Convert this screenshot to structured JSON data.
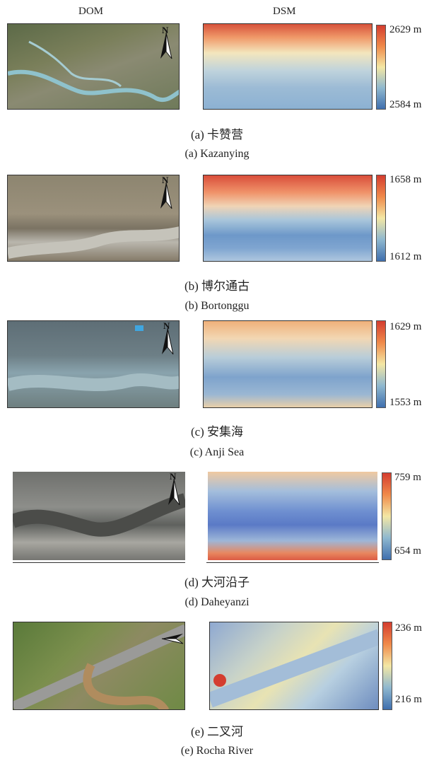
{
  "headers": {
    "dom": "DOM",
    "dsm": "DSM"
  },
  "panels": [
    {
      "cn_caption": "(a) 卡赞营",
      "en_caption": "(a) Kazanying",
      "max": "2629 m",
      "min": "2584 m",
      "north": "N"
    },
    {
      "cn_caption": "(b) 博尔通古",
      "en_caption": "(b) Bortonggu",
      "max": "1658 m",
      "min": "1612 m",
      "north": "N"
    },
    {
      "cn_caption": "(c) 安集海",
      "en_caption": "(c) Anji Sea",
      "max": "1629 m",
      "min": "1553 m",
      "north": "N"
    },
    {
      "cn_caption": "(d) 大河沿子",
      "en_caption": "(d) Daheyanzi",
      "max": "759 m",
      "min": "654 m",
      "north": "N"
    },
    {
      "cn_caption": "(e) 二叉河",
      "en_caption": "(e) Rocha River",
      "max": "236 m",
      "min": "216 m",
      "north": "N"
    }
  ],
  "colorbar": {
    "high": "#d43d2f",
    "mid": "#f3e7a4",
    "low": "#3f6fae"
  }
}
